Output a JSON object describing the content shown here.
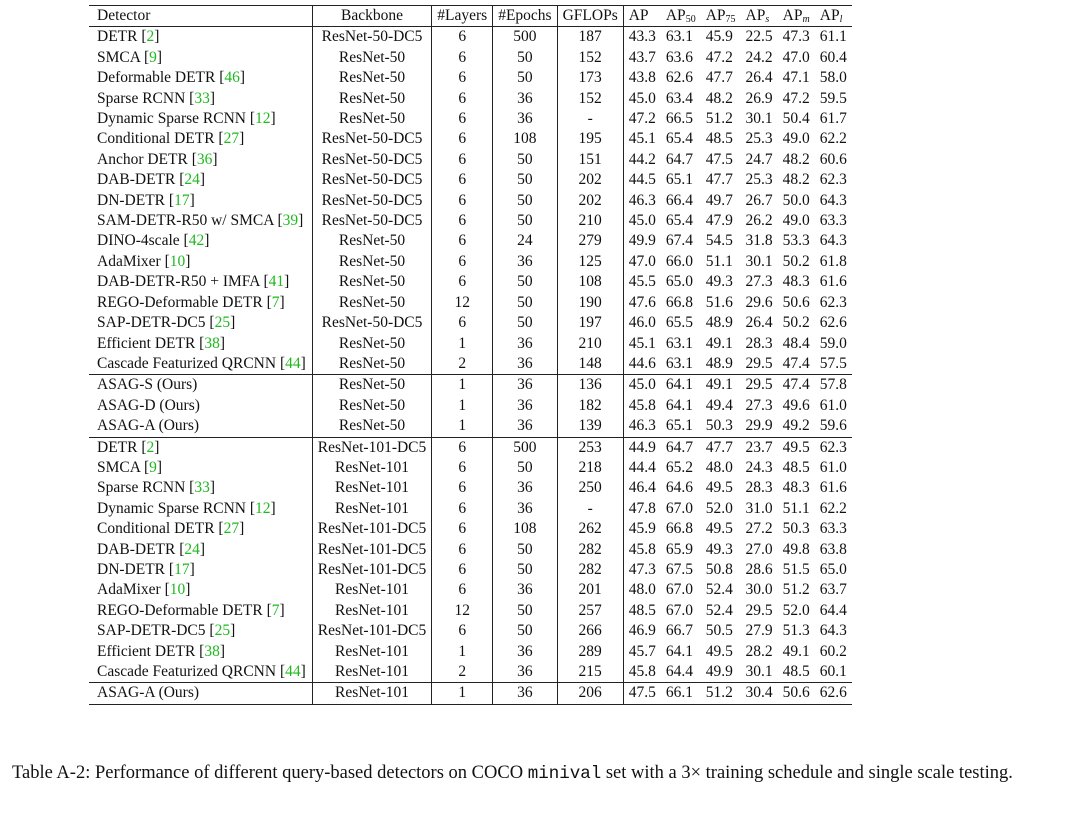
{
  "header": {
    "detector": "Detector",
    "backbone": "Backbone",
    "layers": "#Layers",
    "epochs": "#Epochs",
    "gflops": "GFLOPs",
    "ap": "AP",
    "ap_prefix": "AP",
    "ap50_sub": "50",
    "ap75_sub": "75",
    "aps_sub": "s",
    "apm_sub": "m",
    "apl_sub": "l"
  },
  "groups": [
    {
      "rows": [
        {
          "name": "DETR",
          "ref": "2",
          "backbone": "ResNet-50-DC5",
          "layers": "6",
          "epochs": "500",
          "gflops": "187",
          "ap": "43.3",
          "ap50": "63.1",
          "ap75": "45.9",
          "aps": "22.5",
          "apm": "47.3",
          "apl": "61.1"
        },
        {
          "name": "SMCA",
          "ref": "9",
          "backbone": "ResNet-50",
          "layers": "6",
          "epochs": "50",
          "gflops": "152",
          "ap": "43.7",
          "ap50": "63.6",
          "ap75": "47.2",
          "aps": "24.2",
          "apm": "47.0",
          "apl": "60.4"
        },
        {
          "name": "Deformable DETR",
          "ref": "46",
          "backbone": "ResNet-50",
          "layers": "6",
          "epochs": "50",
          "gflops": "173",
          "ap": "43.8",
          "ap50": "62.6",
          "ap75": "47.7",
          "aps": "26.4",
          "apm": "47.1",
          "apl": "58.0"
        },
        {
          "name": "Sparse RCNN",
          "ref": "33",
          "backbone": "ResNet-50",
          "layers": "6",
          "epochs": "36",
          "gflops": "152",
          "ap": "45.0",
          "ap50": "63.4",
          "ap75": "48.2",
          "aps": "26.9",
          "apm": "47.2",
          "apl": "59.5"
        },
        {
          "name": "Dynamic Sparse RCNN",
          "ref": "12",
          "backbone": "ResNet-50",
          "layers": "6",
          "epochs": "36",
          "gflops": "-",
          "ap": "47.2",
          "ap50": "66.5",
          "ap75": "51.2",
          "aps": "30.1",
          "apm": "50.4",
          "apl": "61.7"
        },
        {
          "name": "Conditional DETR",
          "ref": "27",
          "backbone": "ResNet-50-DC5",
          "layers": "6",
          "epochs": "108",
          "gflops": "195",
          "ap": "45.1",
          "ap50": "65.4",
          "ap75": "48.5",
          "aps": "25.3",
          "apm": "49.0",
          "apl": "62.2"
        },
        {
          "name": "Anchor DETR",
          "ref": "36",
          "backbone": "ResNet-50-DC5",
          "layers": "6",
          "epochs": "50",
          "gflops": "151",
          "ap": "44.2",
          "ap50": "64.7",
          "ap75": "47.5",
          "aps": "24.7",
          "apm": "48.2",
          "apl": "60.6"
        },
        {
          "name": "DAB-DETR",
          "ref": "24",
          "backbone": "ResNet-50-DC5",
          "layers": "6",
          "epochs": "50",
          "gflops": "202",
          "ap": "44.5",
          "ap50": "65.1",
          "ap75": "47.7",
          "aps": "25.3",
          "apm": "48.2",
          "apl": "62.3"
        },
        {
          "name": "DN-DETR",
          "ref": "17",
          "backbone": "ResNet-50-DC5",
          "layers": "6",
          "epochs": "50",
          "gflops": "202",
          "ap": "46.3",
          "ap50": "66.4",
          "ap75": "49.7",
          "aps": "26.7",
          "apm": "50.0",
          "apl": "64.3"
        },
        {
          "name": "SAM-DETR-R50 w/ SMCA",
          "ref": "39",
          "backbone": "ResNet-50-DC5",
          "layers": "6",
          "epochs": "50",
          "gflops": "210",
          "ap": "45.0",
          "ap50": "65.4",
          "ap75": "47.9",
          "aps": "26.2",
          "apm": "49.0",
          "apl": "63.3"
        },
        {
          "name": "DINO-4scale",
          "ref": "42",
          "backbone": "ResNet-50",
          "layers": "6",
          "epochs": "24",
          "gflops": "279",
          "ap": "49.9",
          "ap50": "67.4",
          "ap75": "54.5",
          "aps": "31.8",
          "apm": "53.3",
          "apl": "64.3"
        },
        {
          "name": "AdaMixer",
          "ref": "10",
          "backbone": "ResNet-50",
          "layers": "6",
          "epochs": "36",
          "gflops": "125",
          "ap": "47.0",
          "ap50": "66.0",
          "ap75": "51.1",
          "aps": "30.1",
          "apm": "50.2",
          "apl": "61.8"
        },
        {
          "name": "DAB-DETR-R50 + IMFA",
          "ref": "41",
          "backbone": "ResNet-50",
          "layers": "6",
          "epochs": "50",
          "gflops": "108",
          "ap": "45.5",
          "ap50": "65.0",
          "ap75": "49.3",
          "aps": "27.3",
          "apm": "48.3",
          "apl": "61.6"
        },
        {
          "name": "REGO-Deformable DETR",
          "ref": "7",
          "backbone": "ResNet-50",
          "layers": "12",
          "epochs": "50",
          "gflops": "190",
          "ap": "47.6",
          "ap50": "66.8",
          "ap75": "51.6",
          "aps": "29.6",
          "apm": "50.6",
          "apl": "62.3"
        },
        {
          "name": "SAP-DETR-DC5",
          "ref": "25",
          "backbone": "ResNet-50-DC5",
          "layers": "6",
          "epochs": "50",
          "gflops": "197",
          "ap": "46.0",
          "ap50": "65.5",
          "ap75": "48.9",
          "aps": "26.4",
          "apm": "50.2",
          "apl": "62.6"
        },
        {
          "name": "Efficient DETR",
          "ref": "38",
          "backbone": "ResNet-50",
          "layers": "1",
          "epochs": "36",
          "gflops": "210",
          "ap": "45.1",
          "ap50": "63.1",
          "ap75": "49.1",
          "aps": "28.3",
          "apm": "48.4",
          "apl": "59.0"
        },
        {
          "name": "Cascade Featurized QRCNN",
          "ref": "44",
          "backbone": "ResNet-50",
          "layers": "2",
          "epochs": "36",
          "gflops": "148",
          "ap": "44.6",
          "ap50": "63.1",
          "ap75": "48.9",
          "aps": "29.5",
          "apm": "47.4",
          "apl": "57.5"
        }
      ]
    },
    {
      "rows": [
        {
          "name": "ASAG-S (Ours)",
          "ref": "",
          "backbone": "ResNet-50",
          "layers": "1",
          "epochs": "36",
          "gflops": "136",
          "ap": "45.0",
          "ap50": "64.1",
          "ap75": "49.1",
          "aps": "29.5",
          "apm": "47.4",
          "apl": "57.8"
        },
        {
          "name": "ASAG-D (Ours)",
          "ref": "",
          "backbone": "ResNet-50",
          "layers": "1",
          "epochs": "36",
          "gflops": "182",
          "ap": "45.8",
          "ap50": "64.1",
          "ap75": "49.4",
          "aps": "27.3",
          "apm": "49.6",
          "apl": "61.0"
        },
        {
          "name": "ASAG-A (Ours)",
          "ref": "",
          "backbone": "ResNet-50",
          "layers": "1",
          "epochs": "36",
          "gflops": "139",
          "ap": "46.3",
          "ap50": "65.1",
          "ap75": "50.3",
          "aps": "29.9",
          "apm": "49.2",
          "apl": "59.6"
        }
      ]
    },
    {
      "rows": [
        {
          "name": "DETR",
          "ref": "2",
          "backbone": "ResNet-101-DC5",
          "layers": "6",
          "epochs": "500",
          "gflops": "253",
          "ap": "44.9",
          "ap50": "64.7",
          "ap75": "47.7",
          "aps": "23.7",
          "apm": "49.5",
          "apl": "62.3"
        },
        {
          "name": "SMCA",
          "ref": "9",
          "backbone": "ResNet-101",
          "layers": "6",
          "epochs": "50",
          "gflops": "218",
          "ap": "44.4",
          "ap50": "65.2",
          "ap75": "48.0",
          "aps": "24.3",
          "apm": "48.5",
          "apl": "61.0"
        },
        {
          "name": "Sparse RCNN",
          "ref": "33",
          "backbone": "ResNet-101",
          "layers": "6",
          "epochs": "36",
          "gflops": "250",
          "ap": "46.4",
          "ap50": "64.6",
          "ap75": "49.5",
          "aps": "28.3",
          "apm": "48.3",
          "apl": "61.6"
        },
        {
          "name": "Dynamic Sparse RCNN",
          "ref": "12",
          "backbone": "ResNet-101",
          "layers": "6",
          "epochs": "36",
          "gflops": "-",
          "ap": "47.8",
          "ap50": "67.0",
          "ap75": "52.0",
          "aps": "31.0",
          "apm": "51.1",
          "apl": "62.2"
        },
        {
          "name": "Conditional DETR",
          "ref": "27",
          "backbone": "ResNet-101-DC5",
          "layers": "6",
          "epochs": "108",
          "gflops": "262",
          "ap": "45.9",
          "ap50": "66.8",
          "ap75": "49.5",
          "aps": "27.2",
          "apm": "50.3",
          "apl": "63.3"
        },
        {
          "name": "DAB-DETR",
          "ref": "24",
          "backbone": "ResNet-101-DC5",
          "layers": "6",
          "epochs": "50",
          "gflops": "282",
          "ap": "45.8",
          "ap50": "65.9",
          "ap75": "49.3",
          "aps": "27.0",
          "apm": "49.8",
          "apl": "63.8"
        },
        {
          "name": "DN-DETR",
          "ref": "17",
          "backbone": "ResNet-101-DC5",
          "layers": "6",
          "epochs": "50",
          "gflops": "282",
          "ap": "47.3",
          "ap50": "67.5",
          "ap75": "50.8",
          "aps": "28.6",
          "apm": "51.5",
          "apl": "65.0"
        },
        {
          "name": "AdaMixer",
          "ref": "10",
          "backbone": "ResNet-101",
          "layers": "6",
          "epochs": "36",
          "gflops": "201",
          "ap": "48.0",
          "ap50": "67.0",
          "ap75": "52.4",
          "aps": "30.0",
          "apm": "51.2",
          "apl": "63.7"
        },
        {
          "name": "REGO-Deformable DETR",
          "ref": "7",
          "backbone": "ResNet-101",
          "layers": "12",
          "epochs": "50",
          "gflops": "257",
          "ap": "48.5",
          "ap50": "67.0",
          "ap75": "52.4",
          "aps": "29.5",
          "apm": "52.0",
          "apl": "64.4"
        },
        {
          "name": "SAP-DETR-DC5",
          "ref": "25",
          "backbone": "ResNet-101-DC5",
          "layers": "6",
          "epochs": "50",
          "gflops": "266",
          "ap": "46.9",
          "ap50": "66.7",
          "ap75": "50.5",
          "aps": "27.9",
          "apm": "51.3",
          "apl": "64.3"
        },
        {
          "name": "Efficient DETR",
          "ref": "38",
          "backbone": "ResNet-101",
          "layers": "1",
          "epochs": "36",
          "gflops": "289",
          "ap": "45.7",
          "ap50": "64.1",
          "ap75": "49.5",
          "aps": "28.2",
          "apm": "49.1",
          "apl": "60.2"
        },
        {
          "name": "Cascade Featurized QRCNN",
          "ref": "44",
          "backbone": "ResNet-101",
          "layers": "2",
          "epochs": "36",
          "gflops": "215",
          "ap": "45.8",
          "ap50": "64.4",
          "ap75": "49.9",
          "aps": "30.1",
          "apm": "48.5",
          "apl": "60.1"
        }
      ]
    },
    {
      "rows": [
        {
          "name": "ASAG-A (Ours)",
          "ref": "",
          "backbone": "ResNet-101",
          "layers": "1",
          "epochs": "36",
          "gflops": "206",
          "ap": "47.5",
          "ap50": "66.1",
          "ap75": "51.2",
          "aps": "30.4",
          "apm": "50.6",
          "apl": "62.6"
        }
      ]
    }
  ],
  "caption": {
    "before": "Table A-2: Performance of different query-based detectors on COCO ",
    "code": "minival",
    "after": " set with a 3× training schedule and single scale testing."
  }
}
